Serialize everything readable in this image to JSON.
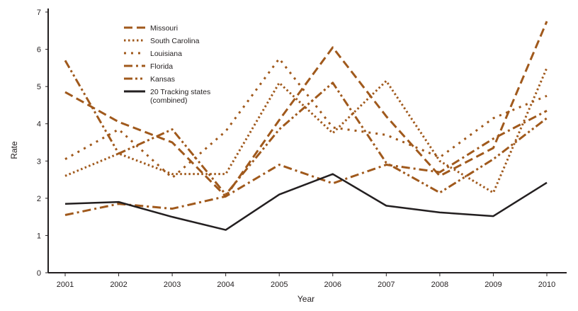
{
  "chart_data": {
    "type": "line",
    "title": "",
    "xlabel": "Year",
    "ylabel": "Rate",
    "ylim": [
      0,
      7
    ],
    "yticks": [
      "0",
      "1",
      "2",
      "3",
      "4",
      "5",
      "6",
      "7"
    ],
    "x": [
      "2001",
      "2002",
      "2003",
      "2004",
      "2005",
      "2006",
      "2007",
      "2008",
      "2009",
      "2010"
    ],
    "grid": false,
    "legend_position": "top-left",
    "series": [
      {
        "name": "Missouri",
        "style": "long-dash",
        "color": "#a0591c",
        "values": [
          4.85,
          4.05,
          3.5,
          2.05,
          4.1,
          6.05,
          4.2,
          2.6,
          3.35,
          6.75
        ]
      },
      {
        "name": "South Carolina",
        "style": "dense-dot",
        "color": "#a0591c",
        "values": [
          2.6,
          3.2,
          2.65,
          2.65,
          5.1,
          3.75,
          5.15,
          3.0,
          2.15,
          5.5
        ]
      },
      {
        "name": "Louisiana",
        "style": "sparse-dot",
        "color": "#a0591c",
        "values": [
          3.05,
          3.85,
          2.55,
          3.8,
          5.75,
          3.9,
          3.7,
          3.1,
          4.15,
          4.75
        ]
      },
      {
        "name": "Florida",
        "style": "dash-dot",
        "color": "#a0591c",
        "values": [
          1.55,
          1.85,
          1.72,
          2.05,
          2.9,
          2.4,
          2.9,
          2.7,
          3.6,
          4.35
        ]
      },
      {
        "name": "Kansas",
        "style": "dash-dot-dot",
        "color": "#a0591c",
        "values": [
          5.7,
          3.2,
          3.85,
          2.1,
          3.85,
          5.1,
          2.95,
          2.15,
          3.05,
          4.15
        ]
      },
      {
        "name": "20 Tracking states (combined)",
        "name_line2": "(combined)",
        "name_line1": "20 Tracking states",
        "style": "solid",
        "color": "#231f20",
        "values": [
          1.85,
          1.9,
          1.5,
          1.15,
          2.1,
          2.65,
          1.8,
          1.62,
          1.52,
          2.42
        ]
      }
    ]
  }
}
